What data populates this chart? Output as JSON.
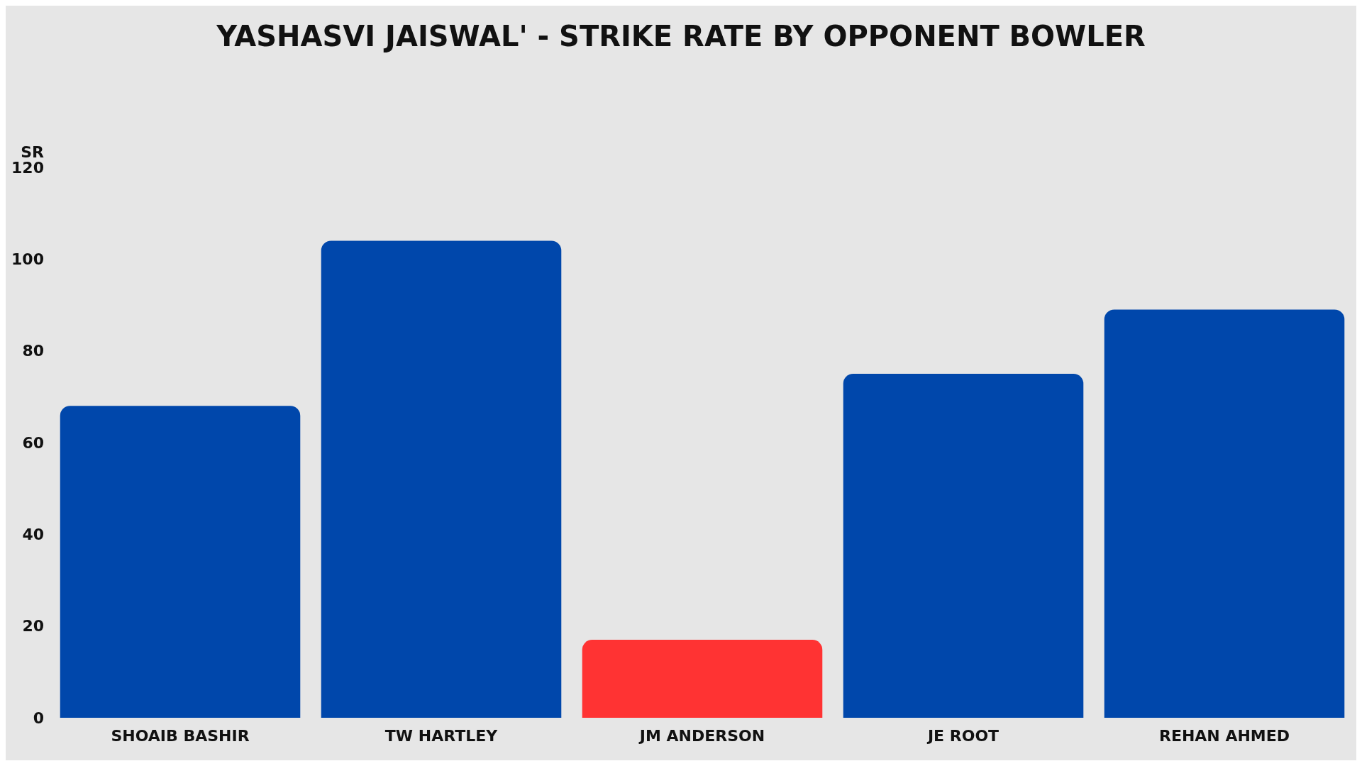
{
  "chart_data": {
    "type": "bar",
    "title": "YASHASVI JAISWAL' - STRIKE RATE BY OPPONENT BOWLER",
    "ylabel": "SR",
    "categories": [
      "SHOAIB BASHIR",
      "TW HARTLEY",
      "JM ANDERSON",
      "JE ROOT",
      "REHAN AHMED"
    ],
    "values": [
      68,
      104,
      17,
      75,
      89
    ],
    "colors": [
      "#0047ab",
      "#0047ab",
      "#ff3333",
      "#0047ab",
      "#0047ab"
    ],
    "ylim": [
      0,
      120
    ],
    "yticks": [
      0,
      20,
      40,
      60,
      80,
      100,
      120
    ],
    "grid": false
  }
}
